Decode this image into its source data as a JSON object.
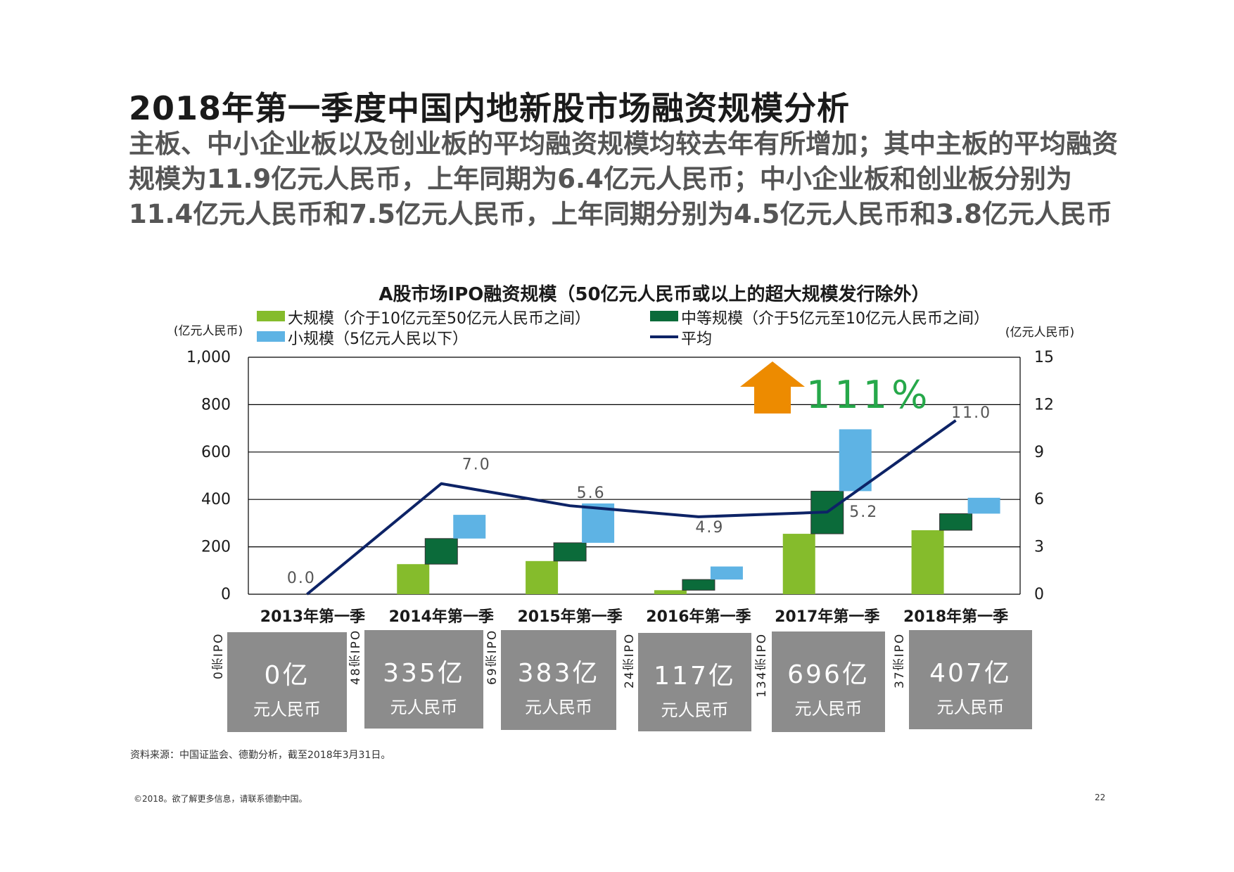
{
  "title": "2018年第一季度中国内地新股市场融资规模分析",
  "subtitle": "主板、中小企业板以及创业板的平均融资规模均较去年有所增加；其中主板的平均融资规模为11.9亿元人民币，上年同期为6.4亿元人民币；中小企业板和创业板分别为11.4亿元人民币和7.5亿元人民币，上年同期分别为4.5亿元人民币和3.8亿元人民币",
  "colors": {
    "large": "#85bc2c",
    "medium": "#0b6b3a",
    "small": "#5eb3e4",
    "average": "#0d2366",
    "arrow": "#ed8b00",
    "growth_text": "#26a84a",
    "box": "#8c8c8c"
  },
  "chart_data": {
    "type": "bar",
    "title": "A股市场IPO融资规模（50亿元人民币或以上的超大规模发行除外）",
    "left_unit": "(亿元人民币)",
    "right_unit": "(亿元人民币)",
    "y_left": {
      "min": 0,
      "max": 1000,
      "ticks": [
        "0",
        "200",
        "400",
        "600",
        "800",
        "1,000"
      ]
    },
    "y_right": {
      "min": 0,
      "max": 15,
      "ticks": [
        "0",
        "3",
        "6",
        "9",
        "12",
        "15"
      ]
    },
    "grid": true,
    "legend_position": "top",
    "categories": [
      "2013年第一季",
      "2014年第一季",
      "2015年第一季",
      "2016年第一季",
      "2017年第一季",
      "2018年第一季"
    ],
    "series": [
      {
        "name": "大规模（介于10亿元至50亿元人民币之间）",
        "type": "stacked-waterfall",
        "values": [
          0,
          127,
          140,
          17,
          255,
          270
        ]
      },
      {
        "name": "中等规模（介于5亿元至10亿元人民币之间）",
        "type": "stacked-waterfall",
        "values": [
          0,
          108,
          77,
          45,
          180,
          70
        ]
      },
      {
        "name": "小规模（5亿元人民以下）",
        "type": "stacked-waterfall",
        "values": [
          0,
          100,
          166,
          55,
          261,
          67
        ]
      },
      {
        "name": "平均",
        "type": "line",
        "axis": "right",
        "values": [
          0.0,
          7.0,
          5.6,
          4.9,
          5.2,
          11.0
        ],
        "labels": [
          "0.0",
          "7.0",
          "5.6",
          "4.9",
          "5.2",
          "11.0"
        ]
      }
    ],
    "annotation": {
      "text": "111%"
    }
  },
  "summary": [
    {
      "count": "0宗IPO",
      "amount": "0亿",
      "unit": "元人民币"
    },
    {
      "count": "48宗IPO",
      "amount": "335亿",
      "unit": "元人民币"
    },
    {
      "count": "69宗IPO",
      "amount": "383亿",
      "unit": "元人民币"
    },
    {
      "count": "24宗IPO",
      "amount": "117亿",
      "unit": "元人民币"
    },
    {
      "count": "134宗IPO",
      "amount": "696亿",
      "unit": "元人民币"
    },
    {
      "count": "37宗IPO",
      "amount": "407亿",
      "unit": "元人民币"
    }
  ],
  "source": "资料来源：中国证监会、德勤分析，截至2018年3月31日。",
  "footer": "©2018。欲了解更多信息，请联系德勤中国。",
  "page_number": "22"
}
